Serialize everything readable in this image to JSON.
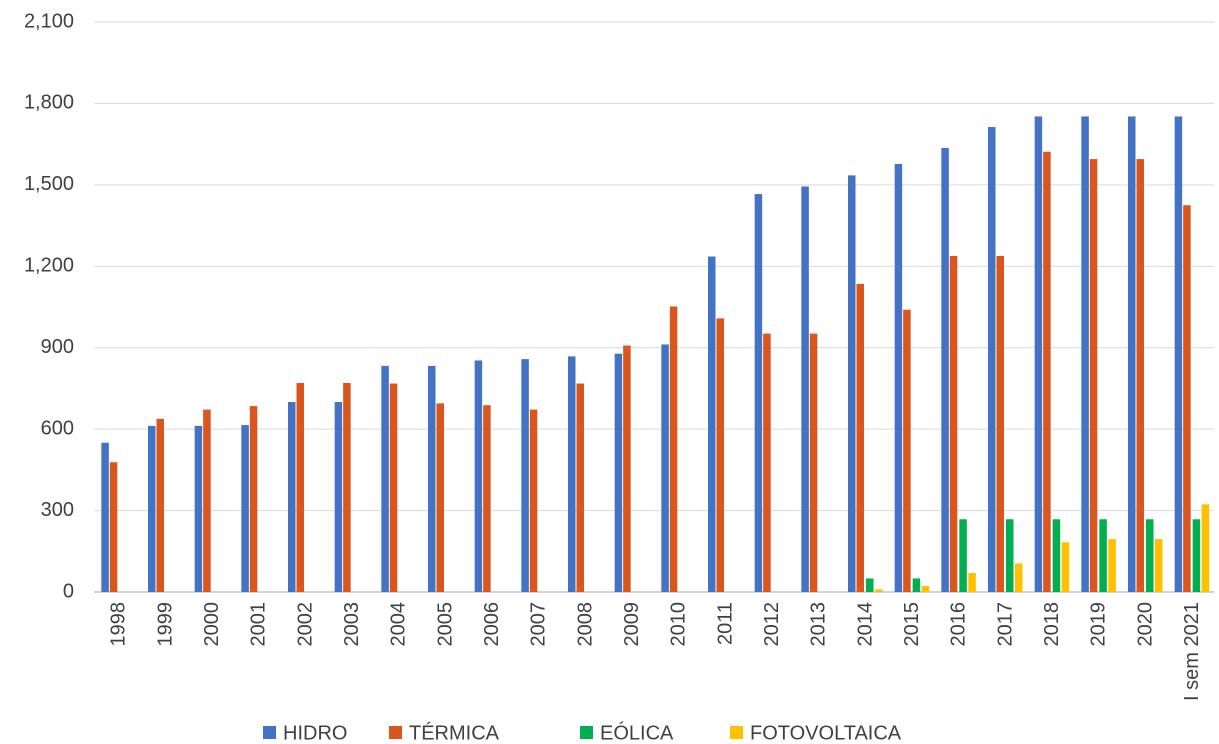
{
  "chart_data": {
    "type": "bar",
    "categories": [
      "1998",
      "1999",
      "2000",
      "2001",
      "2002",
      "2003",
      "2004",
      "2005",
      "2006",
      "2007",
      "2008",
      "2009",
      "2010",
      "2011",
      "2012",
      "2013",
      "2014",
      "2015",
      "2016",
      "2017",
      "2018",
      "2019",
      "2020",
      "I sem 2021"
    ],
    "series": [
      {
        "name": "HIDRO",
        "color": "#4472c4",
        "values": [
          550,
          612,
          612,
          615,
          700,
          700,
          833,
          833,
          853,
          858,
          868,
          878,
          912,
          1236,
          1466,
          1494,
          1535,
          1577,
          1636,
          1713,
          1752,
          1752,
          1752,
          1752
        ]
      },
      {
        "name": "TÉRMICA",
        "color": "#d9561f",
        "values": [
          478,
          638,
          672,
          685,
          770,
          770,
          768,
          695,
          688,
          672,
          768,
          908,
          1052,
          1008,
          952,
          952,
          1135,
          1040,
          1238,
          1238,
          1622,
          1595,
          1595,
          1425
        ]
      },
      {
        "name": "EÓLICA",
        "color": "#00b050",
        "values": [
          null,
          null,
          null,
          null,
          null,
          null,
          null,
          null,
          null,
          null,
          null,
          null,
          null,
          null,
          null,
          null,
          50,
          50,
          268,
          268,
          268,
          268,
          268,
          268
        ]
      },
      {
        "name": "FOTOVOLTAICA",
        "color": "#ffc000",
        "values": [
          null,
          null,
          null,
          null,
          null,
          null,
          null,
          null,
          null,
          null,
          null,
          null,
          null,
          null,
          null,
          null,
          10,
          22,
          70,
          105,
          183,
          195,
          195,
          323
        ]
      }
    ],
    "ylim": [
      0,
      2100
    ],
    "yticks": [
      0,
      300,
      600,
      900,
      {
        "value": 1200,
        "label": "1,200"
      },
      {
        "value": 1500,
        "label": "1,500"
      },
      {
        "value": 1800,
        "label": "1,800"
      },
      {
        "value": 2100,
        "label": "2,100"
      }
    ],
    "grid": true,
    "legend": "bottom"
  }
}
